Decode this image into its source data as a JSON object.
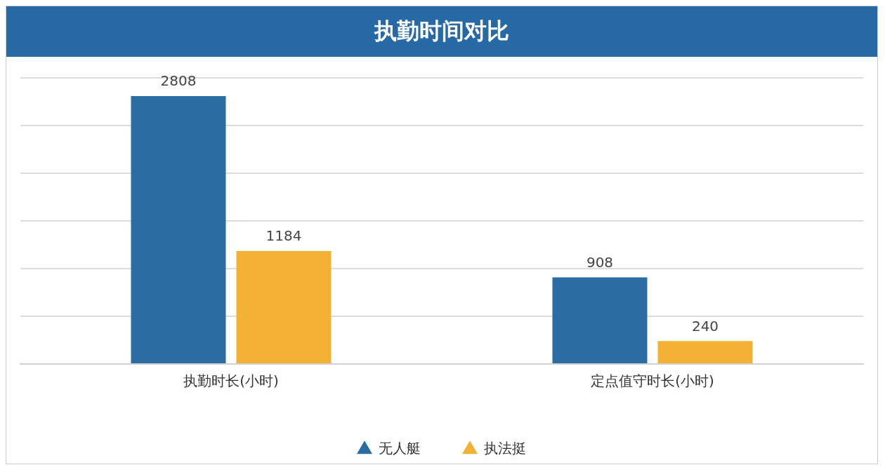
{
  "chart_data": {
    "type": "bar",
    "title": "执勤时间对比",
    "categories": [
      "执勤时长(小时)",
      "定点值守时长(小时)"
    ],
    "series": [
      {
        "name": "无人艇",
        "color": "#2b6ca3",
        "values": [
          2808,
          908
        ]
      },
      {
        "name": "执法挺",
        "color": "#f3b234",
        "values": [
          1184,
          240
        ]
      }
    ],
    "data_labels": true,
    "grid": "y",
    "legend": "bottom",
    "marker": "triangle"
  }
}
